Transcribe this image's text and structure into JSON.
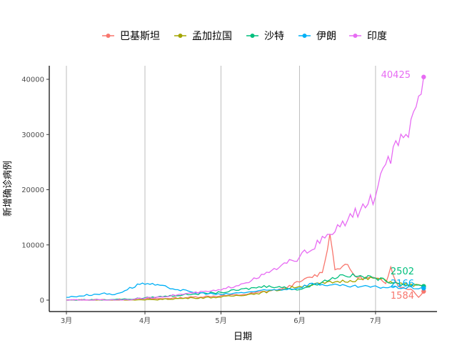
{
  "chart_data": {
    "type": "line",
    "xlabel": "日期",
    "ylabel": "新增确诊病例",
    "xlim": [
      "2020-02-25",
      "2020-07-25"
    ],
    "ylim": [
      -1800,
      42500
    ],
    "x_ticks": [
      {
        "date": "2020-03-01",
        "label": "3月"
      },
      {
        "date": "2020-04-01",
        "label": "4月"
      },
      {
        "date": "2020-05-01",
        "label": "5月"
      },
      {
        "date": "2020-06-01",
        "label": "6月"
      },
      {
        "date": "2020-07-01",
        "label": "7月"
      }
    ],
    "y_ticks": [
      0,
      10000,
      20000,
      30000,
      40000
    ],
    "grid": "vertical major lines",
    "legend_position": "top",
    "series": [
      {
        "name": "巴基斯坦",
        "color": "#F8766D",
        "end_label": "1584",
        "points": [
          [
            "2020-03-01",
            0
          ],
          [
            "2020-03-20",
            100
          ],
          [
            "2020-04-10",
            300
          ],
          [
            "2020-05-01",
            800
          ],
          [
            "2020-05-10",
            1000
          ],
          [
            "2020-05-25",
            2000
          ],
          [
            "2020-06-02",
            3500
          ],
          [
            "2020-06-10",
            5000
          ],
          [
            "2020-06-13",
            12000
          ],
          [
            "2020-06-15",
            5500
          ],
          [
            "2020-06-19",
            6500
          ],
          [
            "2020-06-24",
            4000
          ],
          [
            "2020-07-01",
            4000
          ],
          [
            "2020-07-05",
            3000
          ],
          [
            "2020-07-07",
            6000
          ],
          [
            "2020-07-10",
            2500
          ],
          [
            "2020-07-15",
            2000
          ],
          [
            "2020-07-18",
            500
          ],
          [
            "2020-07-20",
            1584
          ]
        ]
      },
      {
        "name": "孟加拉国",
        "color": "#A3A500",
        "end_label": "",
        "points": [
          [
            "2020-03-01",
            0
          ],
          [
            "2020-04-01",
            20
          ],
          [
            "2020-04-20",
            400
          ],
          [
            "2020-05-01",
            550
          ],
          [
            "2020-05-15",
            1200
          ],
          [
            "2020-06-01",
            2500
          ],
          [
            "2020-06-15",
            3300
          ],
          [
            "2020-07-01",
            4000
          ],
          [
            "2020-07-10",
            3000
          ],
          [
            "2020-07-20",
            2500
          ]
        ]
      },
      {
        "name": "沙特",
        "color": "#00BF7D",
        "end_label": "2502",
        "points": [
          [
            "2020-03-01",
            0
          ],
          [
            "2020-03-25",
            150
          ],
          [
            "2020-04-20",
            1100
          ],
          [
            "2020-05-01",
            1400
          ],
          [
            "2020-05-20",
            2600
          ],
          [
            "2020-06-01",
            1900
          ],
          [
            "2020-06-10",
            3300
          ],
          [
            "2020-06-18",
            4600
          ],
          [
            "2020-07-01",
            4000
          ],
          [
            "2020-07-10",
            3000
          ],
          [
            "2020-07-20",
            2502
          ]
        ]
      },
      {
        "name": "伊朗",
        "color": "#00B0F6",
        "end_label": "2166",
        "points": [
          [
            "2020-03-01",
            500
          ],
          [
            "2020-03-15",
            1200
          ],
          [
            "2020-03-20",
            1000
          ],
          [
            "2020-03-31",
            3100
          ],
          [
            "2020-04-10",
            2300
          ],
          [
            "2020-04-20",
            1400
          ],
          [
            "2020-05-01",
            1000
          ],
          [
            "2020-05-15",
            1600
          ],
          [
            "2020-06-01",
            2200
          ],
          [
            "2020-06-05",
            3000
          ],
          [
            "2020-06-20",
            2500
          ],
          [
            "2020-07-20",
            2166
          ]
        ]
      },
      {
        "name": "印度",
        "color": "#E76BF3",
        "end_label": "40425",
        "points": [
          [
            "2020-03-01",
            0
          ],
          [
            "2020-03-25",
            80
          ],
          [
            "2020-04-05",
            500
          ],
          [
            "2020-04-20",
            1300
          ],
          [
            "2020-05-01",
            1800
          ],
          [
            "2020-05-15",
            3900
          ],
          [
            "2020-06-01",
            7800
          ],
          [
            "2020-06-13",
            11900
          ],
          [
            "2020-06-20",
            14500
          ],
          [
            "2020-07-01",
            18800
          ],
          [
            "2020-07-05",
            24600
          ],
          [
            "2020-07-10",
            28000
          ],
          [
            "2020-07-14",
            29500
          ],
          [
            "2020-07-17",
            35000
          ],
          [
            "2020-07-20",
            40425
          ]
        ]
      }
    ]
  }
}
